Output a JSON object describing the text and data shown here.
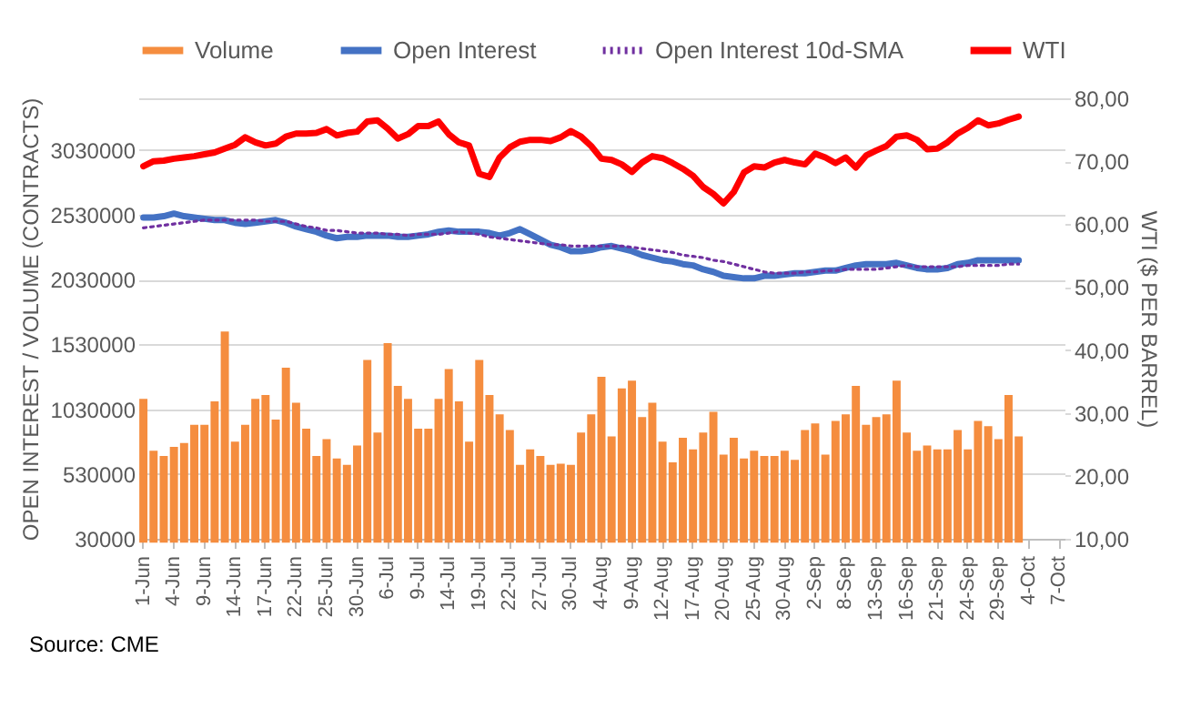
{
  "chart_data": {
    "type": "bar",
    "legend": "top",
    "grid": "y",
    "ylabel": "OPEN INTEREST / VOLUME (CONTRACTS)",
    "y2label": "WTI ($ PER BARREL)",
    "ylim": [
      30000,
      3430000
    ],
    "yticks": [
      30000,
      530000,
      1030000,
      1530000,
      2030000,
      2530000,
      3030000,
      {
        "value": 3430000,
        "label": null
      }
    ],
    "y2lim": [
      10,
      80
    ],
    "y2ticks": [
      {
        "value": 10,
        "label": "10,00"
      },
      {
        "value": 20,
        "label": "20,00"
      },
      {
        "value": 30,
        "label": "30,00"
      },
      {
        "value": 40,
        "label": "40,00"
      },
      {
        "value": 50,
        "label": "50,00"
      },
      {
        "value": 60,
        "label": "60,00"
      },
      {
        "value": 70,
        "label": "70,00"
      },
      {
        "value": 80,
        "label": "80,00"
      }
    ],
    "annotations": [
      "Source: CME"
    ],
    "categories": [
      "1-Jun",
      null,
      null,
      "4-Jun",
      null,
      null,
      "9-Jun",
      null,
      null,
      "14-Jun",
      null,
      null,
      "17-Jun",
      null,
      null,
      "22-Jun",
      null,
      null,
      "25-Jun",
      null,
      null,
      "30-Jun",
      null,
      null,
      "6-Jul",
      null,
      null,
      "9-Jul",
      null,
      null,
      "14-Jul",
      null,
      null,
      "19-Jul",
      null,
      null,
      "22-Jul",
      null,
      null,
      "27-Jul",
      null,
      null,
      "30-Jul",
      null,
      null,
      "4-Aug",
      null,
      null,
      "9-Aug",
      null,
      null,
      "12-Aug",
      null,
      null,
      "17-Aug",
      null,
      null,
      "20-Aug",
      null,
      null,
      "25-Aug",
      null,
      null,
      "30-Aug",
      null,
      null,
      "2-Sep",
      null,
      null,
      "8-Sep",
      null,
      null,
      "13-Sep",
      null,
      null,
      "16-Sep",
      null,
      null,
      "21-Sep",
      null,
      null,
      "24-Sep",
      null,
      null,
      "29-Sep",
      null,
      null,
      "4-Oct",
      null,
      null,
      "7-Oct"
    ],
    "series": [
      {
        "name": "Volume",
        "color": "#f58d3f",
        "values": [
          1110000,
          710000,
          670000,
          740000,
          770000,
          910000,
          910000,
          1090000,
          1630000,
          780000,
          910000,
          1110000,
          1140000,
          950000,
          1350000,
          1080000,
          880000,
          670000,
          800000,
          650000,
          600000,
          750000,
          1410000,
          850000,
          1540000,
          1210000,
          1110000,
          880000,
          880000,
          1110000,
          1340000,
          1090000,
          780000,
          1410000,
          1140000,
          990000,
          870000,
          600000,
          720000,
          670000,
          600000,
          610000,
          600000,
          850000,
          990000,
          1280000,
          820000,
          1190000,
          1250000,
          970000,
          1080000,
          780000,
          620000,
          810000,
          720000,
          850000,
          1010000,
          680000,
          810000,
          650000,
          710000,
          670000,
          670000,
          710000,
          640000,
          870000,
          920000,
          680000,
          940000,
          990000,
          1210000,
          910000,
          970000,
          990000,
          1250000,
          850000,
          710000,
          750000,
          720000,
          720000,
          870000,
          720000,
          940000,
          900000,
          800000,
          1140000,
          820000,
          null,
          null,
          null,
          null
        ]
      },
      {
        "name": "Open Interest",
        "type": "line",
        "color": "#4472c4",
        "line_style": "solid",
        "values": [
          2510000,
          2510000,
          2520000,
          2540000,
          2520000,
          2510000,
          2500000,
          2490000,
          2490000,
          2470000,
          2460000,
          2470000,
          2480000,
          2490000,
          2470000,
          2440000,
          2420000,
          2400000,
          2370000,
          2350000,
          2360000,
          2360000,
          2370000,
          2370000,
          2370000,
          2360000,
          2360000,
          2370000,
          2380000,
          2400000,
          2410000,
          2400000,
          2400000,
          2400000,
          2390000,
          2370000,
          2390000,
          2420000,
          2380000,
          2340000,
          2300000,
          2280000,
          2250000,
          2250000,
          2260000,
          2280000,
          2290000,
          2270000,
          2250000,
          2220000,
          2200000,
          2180000,
          2170000,
          2150000,
          2140000,
          2110000,
          2090000,
          2060000,
          2050000,
          2040000,
          2040000,
          2060000,
          2060000,
          2070000,
          2080000,
          2080000,
          2090000,
          2100000,
          2100000,
          2120000,
          2140000,
          2150000,
          2150000,
          2150000,
          2160000,
          2140000,
          2120000,
          2110000,
          2110000,
          2120000,
          2150000,
          2160000,
          2180000,
          2180000,
          2180000,
          2180000,
          2180000,
          null,
          null,
          null,
          null
        ]
      },
      {
        "name": "Open Interest 10d-SMA",
        "type": "line",
        "color": "#7030a0",
        "line_style": "dotted",
        "values": [
          2430000,
          2440000,
          2450000,
          2460000,
          2470000,
          2480000,
          2490000,
          2490000,
          2490000,
          2490000,
          2490000,
          2490000,
          2480000,
          2480000,
          2480000,
          2460000,
          2440000,
          2430000,
          2410000,
          2410000,
          2400000,
          2390000,
          2390000,
          2390000,
          2380000,
          2380000,
          2370000,
          2380000,
          2380000,
          2380000,
          2390000,
          2400000,
          2390000,
          2380000,
          2360000,
          2350000,
          2340000,
          2330000,
          2320000,
          2310000,
          2300000,
          2300000,
          2290000,
          2290000,
          2290000,
          2290000,
          2290000,
          2290000,
          2280000,
          2270000,
          2260000,
          2250000,
          2240000,
          2220000,
          2210000,
          2200000,
          2180000,
          2170000,
          2150000,
          2130000,
          2110000,
          2090000,
          2080000,
          2080000,
          2080000,
          2090000,
          2090000,
          2100000,
          2100000,
          2110000,
          2110000,
          2110000,
          2110000,
          2120000,
          2130000,
          2140000,
          2130000,
          2130000,
          2130000,
          2130000,
          2130000,
          2140000,
          2140000,
          2140000,
          2140000,
          2150000,
          2150000,
          null,
          null,
          null,
          null
        ]
      },
      {
        "name": "WTI",
        "type": "line",
        "color": "#ff0000",
        "axis": "y2",
        "line_style": "solid",
        "values": [
          69.2,
          70.0,
          70.1,
          70.4,
          70.6,
          70.8,
          71.1,
          71.4,
          72.0,
          72.6,
          73.8,
          73.0,
          72.5,
          72.8,
          73.9,
          74.4,
          74.4,
          74.5,
          75.1,
          74.1,
          74.5,
          74.7,
          76.3,
          76.5,
          75.2,
          73.6,
          74.3,
          75.6,
          75.6,
          76.3,
          74.3,
          73.0,
          72.5,
          68.0,
          67.5,
          70.6,
          72.2,
          73.1,
          73.4,
          73.4,
          73.2,
          73.8,
          74.8,
          73.9,
          72.4,
          70.4,
          70.2,
          69.5,
          68.3,
          69.8,
          70.8,
          70.5,
          69.7,
          68.8,
          67.7,
          65.9,
          64.8,
          63.3,
          65.1,
          68.2,
          69.2,
          69.0,
          69.8,
          70.2,
          69.8,
          69.5,
          71.2,
          70.6,
          69.7,
          70.6,
          69.0,
          70.9,
          71.7,
          72.4,
          73.9,
          74.1,
          73.4,
          71.9,
          72.0,
          73.0,
          74.4,
          75.3,
          76.5,
          75.7,
          76.0,
          76.6,
          77.1,
          null,
          null,
          null,
          null
        ]
      }
    ]
  }
}
